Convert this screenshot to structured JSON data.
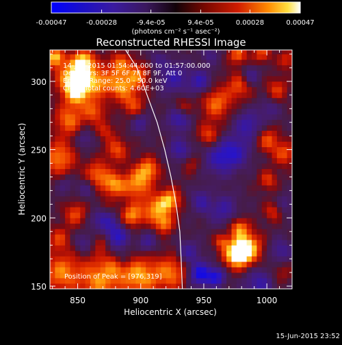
{
  "colorbar": {
    "tick_labels": [
      "-0.00047",
      "-0.00028",
      "-9.4e-05",
      "9.4e-05",
      "0.00028",
      "0.00047"
    ],
    "tick_values": [
      -0.00047,
      -0.00028,
      -9.4e-05,
      9.4e-05,
      0.00028,
      0.00047
    ],
    "range": [
      -0.00047,
      0.00047
    ],
    "units_label": "(photons cm⁻² s⁻¹ asec⁻²)"
  },
  "timestamp": "15-Jun-2015 23:52",
  "chart_data": {
    "type": "heatmap",
    "title": "Reconstructed RHESSI Image",
    "xlabel": "Heliocentric X (arcsec)",
    "ylabel": "Heliocentric Y (arcsec)",
    "xlim": [
      828,
      1020
    ],
    "ylim": [
      148,
      323
    ],
    "x_ticks": [
      850,
      900,
      950,
      1000
    ],
    "y_ticks": [
      150,
      200,
      250,
      300
    ],
    "x_tick_labels": [
      "850",
      "900",
      "950",
      "1000"
    ],
    "y_tick_labels": [
      "150",
      "200",
      "250",
      "300"
    ],
    "annotations": [
      "14-Jun-2015 01:54:44.000 to 01:57:00.000",
      "Detectors: 3F 5F 6F 7F 8F 9F, Att 0",
      "Energy Range: 25.0 - 50.0 keV",
      "Clean    Total counts: 4.60E+03"
    ],
    "peak_label": "Position of Peak = [976,319]",
    "peak_position": [
      976,
      319
    ],
    "limb_curve": [
      [
        888,
        323
      ],
      [
        897,
        310
      ],
      [
        905,
        290
      ],
      [
        913,
        270
      ],
      [
        919,
        250
      ],
      [
        924,
        230
      ],
      [
        928,
        210
      ],
      [
        931,
        190
      ],
      [
        932,
        170
      ],
      [
        933,
        148
      ]
    ],
    "cells": {
      "x0": 828,
      "y0": 148,
      "dx": 4,
      "dy": 4,
      "cols": 48,
      "rows": 44,
      "blobs": [
        [
          846,
          303,
          9,
          0.00042
        ],
        [
          855,
          315,
          6,
          0.0004
        ],
        [
          832,
          318,
          5,
          0.0004
        ],
        [
          850,
          292,
          7,
          0.00036
        ],
        [
          866,
          300,
          8,
          0.00033
        ],
        [
          884,
          296,
          7,
          0.00031
        ],
        [
          883,
          313,
          6,
          0.00028
        ],
        [
          897,
          304,
          7,
          0.0003
        ],
        [
          843,
          272,
          8,
          0.0003
        ],
        [
          863,
          278,
          6,
          0.00026
        ],
        [
          894,
          283,
          6,
          0.00024
        ],
        [
          835,
          244,
          9,
          0.00032
        ],
        [
          866,
          232,
          7,
          0.0003
        ],
        [
          879,
          224,
          6,
          0.00033
        ],
        [
          881,
          250,
          6,
          0.00026
        ],
        [
          897,
          225,
          8,
          0.00034
        ],
        [
          906,
          236,
          6,
          0.00031
        ],
        [
          893,
          202,
          6,
          0.00034
        ],
        [
          911,
          206,
          7,
          0.00033
        ],
        [
          923,
          213,
          6,
          0.00038
        ],
        [
          919,
          196,
          5,
          0.0003
        ],
        [
          848,
          203,
          6,
          0.00025
        ],
        [
          835,
          185,
          6,
          0.00022
        ],
        [
          870,
          183,
          5,
          0.0002
        ],
        [
          868,
          155,
          12,
          0.00034
        ],
        [
          900,
          157,
          10,
          0.00035
        ],
        [
          924,
          160,
          9,
          0.0003
        ],
        [
          837,
          160,
          10,
          0.00032
        ],
        [
          884,
          168,
          7,
          0.00024
        ],
        [
          984,
          178,
          8,
          0.00047
        ],
        [
          975,
          173,
          7,
          0.0004
        ],
        [
          978,
          193,
          5,
          0.0003
        ],
        [
          964,
          183,
          4,
          0.00022
        ],
        [
          960,
          284,
          8,
          0.0003
        ],
        [
          978,
          297,
          7,
          0.00025
        ],
        [
          954,
          261,
          6,
          0.00025
        ],
        [
          1001,
          257,
          6,
          0.00026
        ],
        [
          1008,
          294,
          6,
          0.00022
        ],
        [
          1014,
          247,
          6,
          0.00026
        ],
        [
          1001,
          228,
          5,
          0.00022
        ],
        [
          1005,
          205,
          5,
          0.0002
        ],
        [
          933,
          281,
          5,
          0.00018
        ],
        [
          977,
          320,
          5,
          0.0003
        ],
        [
          996,
          321,
          5,
          0.00025
        ],
        [
          1016,
          316,
          5,
          0.0002
        ],
        [
          940,
          240,
          5,
          0.00014
        ],
        [
          1011,
          160,
          6,
          0.00012
        ],
        [
          871,
          207,
          5,
          0.00014
        ],
        [
          872,
          264,
          5,
          0.00018
        ],
        [
          956,
          215,
          5,
          0.0001
        ],
        [
          880,
          186,
          7,
          -0.00035
        ],
        [
          870,
          200,
          6,
          -0.00028
        ],
        [
          886,
          170,
          5,
          -0.0003
        ],
        [
          947,
          159,
          6,
          -0.0004
        ],
        [
          960,
          157,
          5,
          -0.00034
        ],
        [
          938,
          175,
          6,
          -0.00022
        ],
        [
          930,
          273,
          6,
          -0.00028
        ],
        [
          931,
          250,
          6,
          -0.00024
        ],
        [
          926,
          303,
          8,
          -0.00024
        ],
        [
          947,
          300,
          6,
          -0.00026
        ],
        [
          963,
          244,
          9,
          -0.00026
        ],
        [
          976,
          249,
          8,
          -0.00022
        ],
        [
          985,
          268,
          7,
          -0.00025
        ],
        [
          965,
          207,
          8,
          -0.00022
        ],
        [
          949,
          213,
          6,
          -0.00024
        ],
        [
          994,
          152,
          8,
          -0.00024
        ],
        [
          1011,
          176,
          6,
          -0.0002
        ],
        [
          1002,
          280,
          6,
          -0.00014
        ],
        [
          1014,
          210,
          5,
          -0.00014
        ],
        [
          987,
          304,
          5,
          -0.0002
        ],
        [
          955,
          320,
          5,
          -0.00014
        ],
        [
          900,
          270,
          5,
          -0.00018
        ],
        [
          855,
          258,
          5,
          -0.00016
        ],
        [
          857,
          222,
          5,
          -0.00014
        ],
        [
          840,
          225,
          5,
          -0.00012
        ],
        [
          913,
          316,
          5,
          -0.00012
        ],
        [
          855,
          182,
          5,
          -0.00016
        ],
        [
          905,
          182,
          5,
          -0.0002
        ]
      ]
    }
  }
}
